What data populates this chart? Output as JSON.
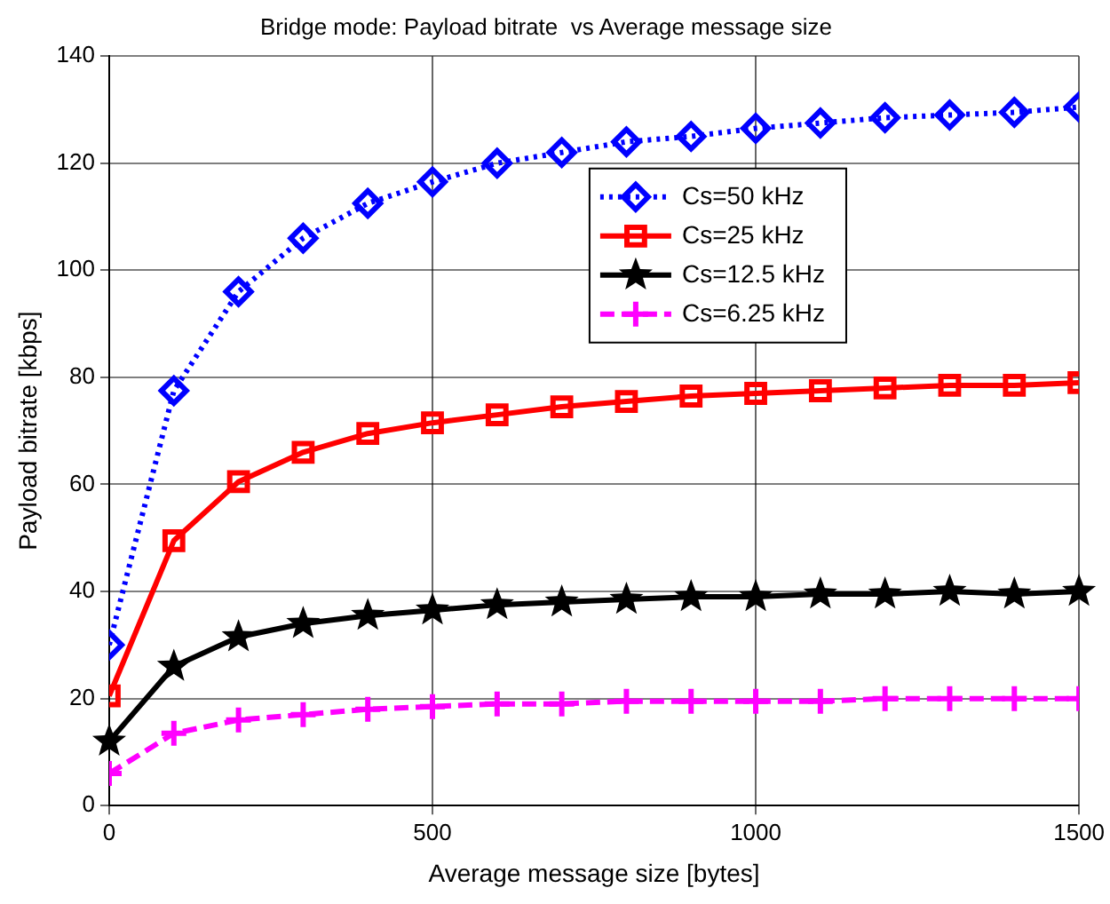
{
  "chart_data": {
    "type": "line",
    "title": "Bridge mode: Payload bitrate  vs Average message size",
    "xlabel": "Average message size [bytes]",
    "ylabel": "Payload bitrate [kbps]",
    "x": [
      0,
      100,
      200,
      300,
      400,
      500,
      600,
      700,
      800,
      900,
      1000,
      1100,
      1200,
      1300,
      1400,
      1500
    ],
    "xlim": [
      0,
      1500
    ],
    "xticks": [
      0,
      500,
      1000,
      1500
    ],
    "ylim": [
      0,
      140
    ],
    "yticks": [
      0,
      20,
      40,
      60,
      80,
      100,
      120,
      140
    ],
    "grid": true,
    "legend": "top right",
    "series": [
      {
        "name": "Cs=50 kHz",
        "color": "#0000ff",
        "marker": "diamond",
        "line_style": "dotted",
        "values": [
          30,
          77.5,
          96,
          106,
          112.5,
          116.5,
          120,
          122,
          124,
          125,
          126.5,
          127.5,
          128.5,
          129,
          129.5,
          130.5
        ]
      },
      {
        "name": "Cs=25 kHz",
        "color": "#ff0000",
        "marker": "square",
        "line_style": "solid",
        "values": [
          20.5,
          49.5,
          60.5,
          66,
          69.5,
          71.5,
          73,
          74.5,
          75.5,
          76.5,
          77,
          77.5,
          78,
          78.5,
          78.5,
          79
        ]
      },
      {
        "name": "Cs=12.5 kHz",
        "color": "#000000",
        "marker": "star",
        "line_style": "solid",
        "values": [
          12,
          26,
          31.5,
          34,
          35.5,
          36.5,
          37.5,
          38,
          38.5,
          39,
          39,
          39.5,
          39.5,
          40,
          39.5,
          40
        ]
      },
      {
        "name": "Cs=6.25 kHz",
        "color": "#ff00ff",
        "marker": "cross",
        "line_style": "dashed",
        "values": [
          6,
          13.5,
          16,
          17,
          18,
          18.5,
          19,
          19,
          19.5,
          19.5,
          19.5,
          19.5,
          20,
          20,
          20,
          20
        ]
      }
    ]
  }
}
